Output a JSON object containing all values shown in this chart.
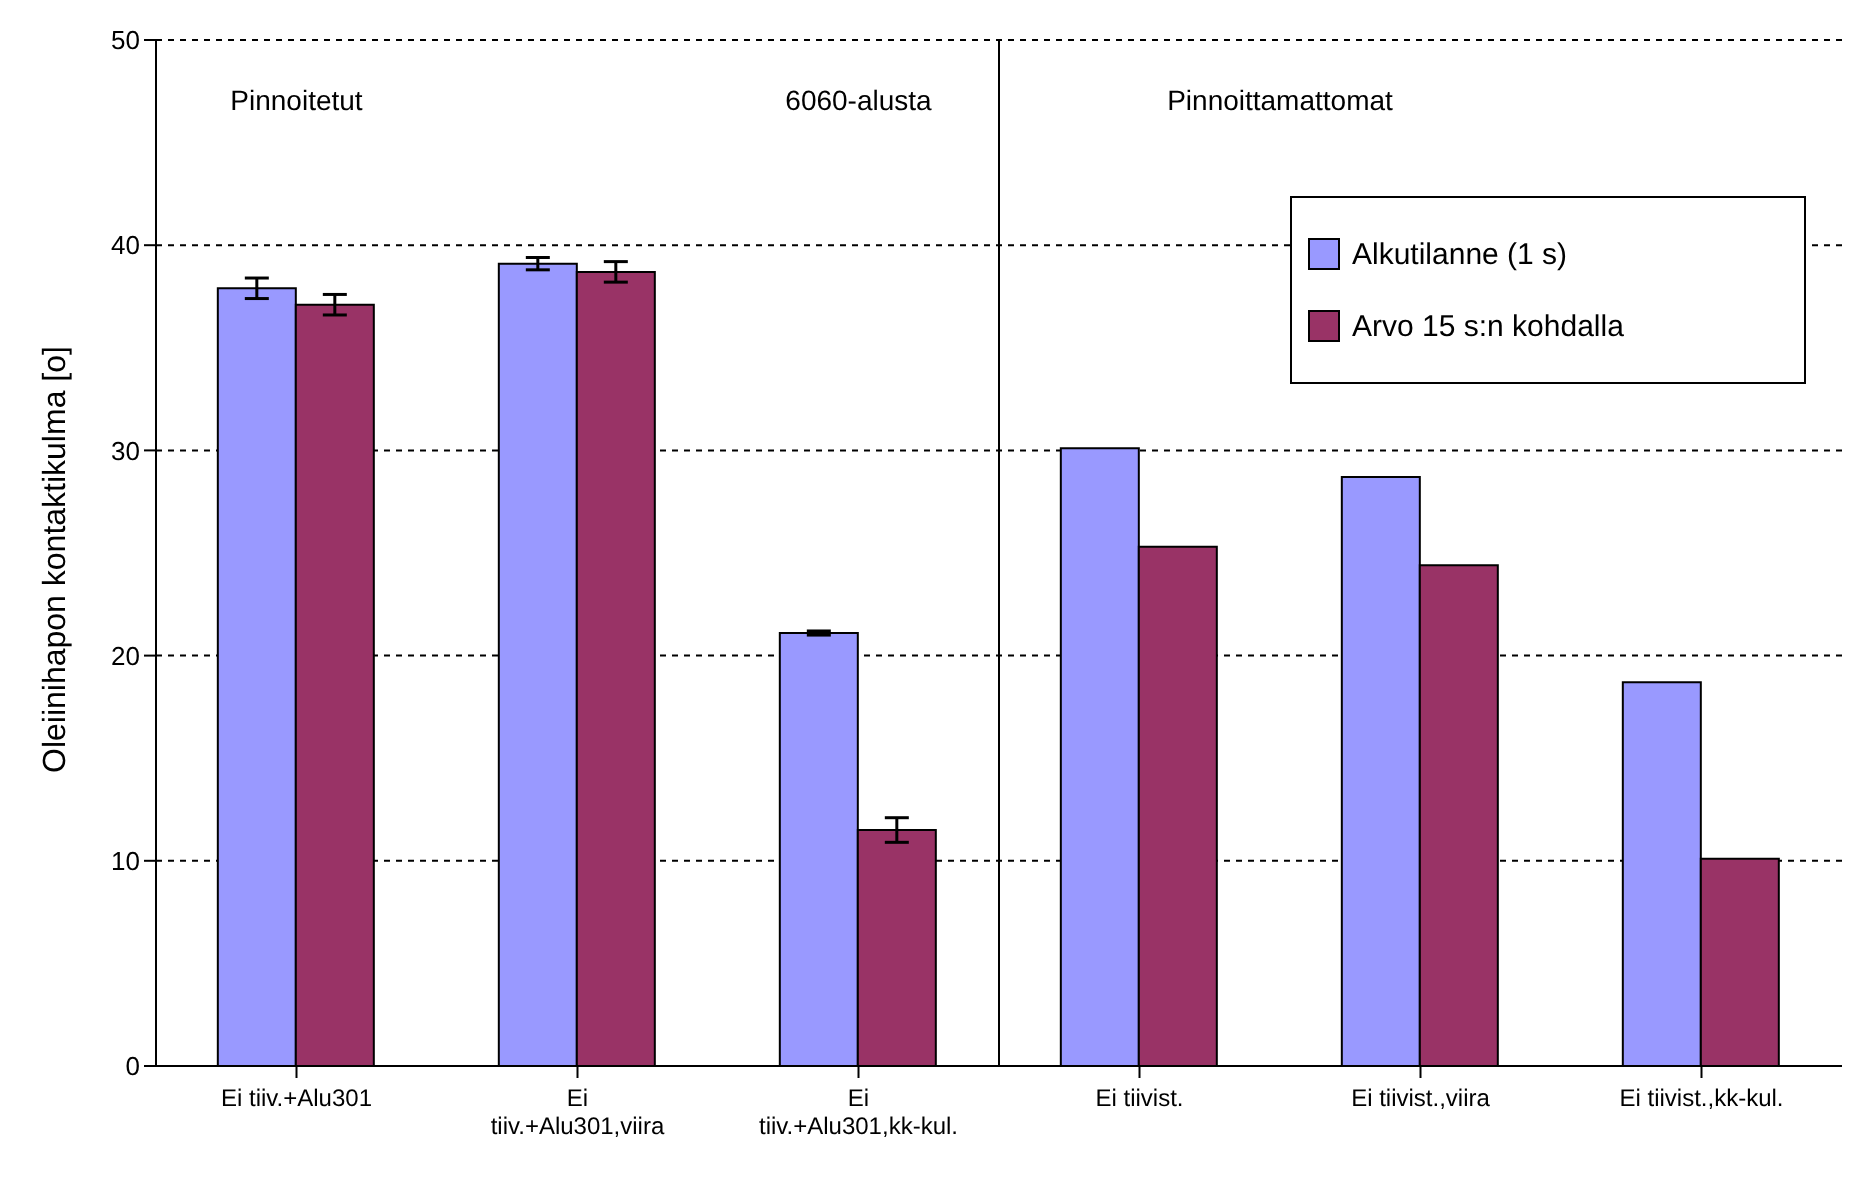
{
  "chart_data": {
    "type": "bar",
    "ylabel": "Oleiinihapon kontaktikulma [o]",
    "categories": [
      "Ei tiiv.+Alu301",
      "Ei tiiv.+Alu301,viira",
      "Ei tiiv.+Alu301,kk-kul.",
      "Ei tiivist.",
      "Ei tiivist.,viira",
      "Ei tiivist.,kk-kul."
    ],
    "series": [
      {
        "name": "Alkutilanne (1 s)",
        "color": "#9999ff",
        "values": [
          37.9,
          39.1,
          21.1,
          30.1,
          28.7,
          18.7
        ],
        "errors": [
          0.5,
          0.3,
          0.1,
          null,
          null,
          null
        ]
      },
      {
        "name": "Arvo 15 s:n kohdalla",
        "color": "#993366",
        "values": [
          37.1,
          38.7,
          11.5,
          25.3,
          24.4,
          10.1
        ],
        "errors": [
          0.5,
          0.5,
          0.6,
          null,
          null,
          null
        ]
      }
    ],
    "ylim": [
      0,
      50
    ],
    "yticks": [
      0,
      10,
      20,
      30,
      40,
      50
    ],
    "grid": "y",
    "legend": "top right",
    "ref_lines": [
      {
        "axis": "x",
        "value": "Ei tiivist.",
        "color": "#000000"
      }
    ],
    "annotations": [
      "Pinnoitetut",
      "6060-alusta",
      "Pinnoittamattomat"
    ]
  }
}
